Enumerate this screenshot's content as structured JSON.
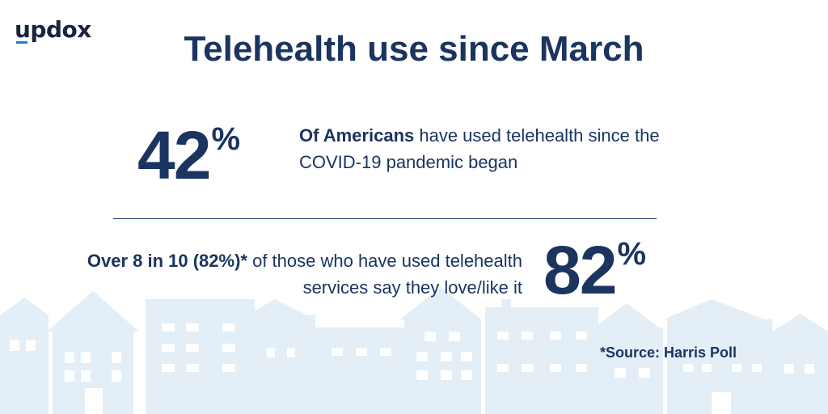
{
  "brand": {
    "logo_text": "updox",
    "accent_color": "#1e7fd6"
  },
  "title": "Telehealth use since March",
  "stat1": {
    "number": "42",
    "percent_sign": "%",
    "text_bold": "Of Americans",
    "text_rest": " have used telehealth since the COVID-19 pandemic began"
  },
  "stat2": {
    "number": "82",
    "percent_sign": "%",
    "text_bold": "Over 8 in 10 (82%)*",
    "text_rest": " of those who have used telehealth services say they love/like it"
  },
  "source": "*Source: Harris Poll",
  "colors": {
    "primary": "#1b3460",
    "houses": "#e3eef7",
    "background": "#ffffff"
  }
}
